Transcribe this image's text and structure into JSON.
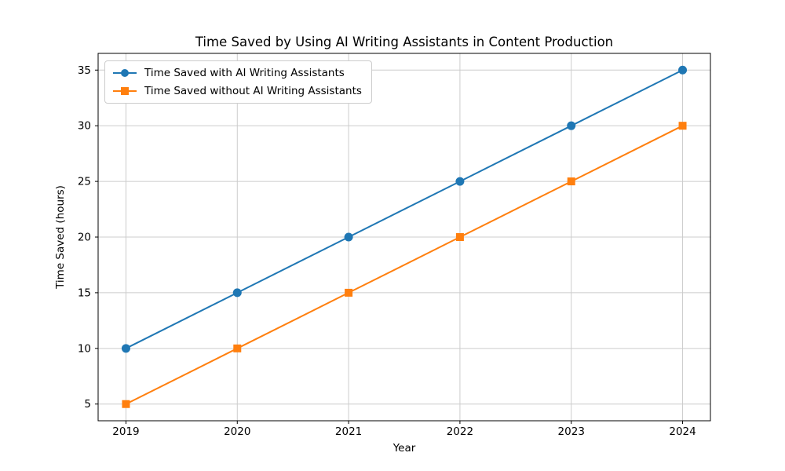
{
  "chart_data": {
    "type": "line",
    "title": "Time Saved by Using AI Writing Assistants in Content Production",
    "xlabel": "Year",
    "ylabel": "Time Saved (hours)",
    "x": [
      2019,
      2020,
      2021,
      2022,
      2023,
      2024
    ],
    "series": [
      {
        "name": "Time Saved with AI Writing Assistants",
        "values": [
          10,
          15,
          20,
          25,
          30,
          35
        ],
        "color": "#1f77b4",
        "marker": "circle"
      },
      {
        "name": "Time Saved without AI Writing Assistants",
        "values": [
          5,
          10,
          15,
          20,
          25,
          30
        ],
        "color": "#ff7f0e",
        "marker": "square"
      }
    ],
    "xticks": [
      2019,
      2020,
      2021,
      2022,
      2023,
      2024
    ],
    "yticks": [
      5,
      10,
      15,
      20,
      25,
      30,
      35
    ],
    "xlim": [
      2018.75,
      2024.25
    ],
    "ylim": [
      3.5,
      36.5
    ],
    "grid": true,
    "legend_position": "upper left",
    "grid_color": "#cccccc",
    "spine_color": "#000000"
  }
}
